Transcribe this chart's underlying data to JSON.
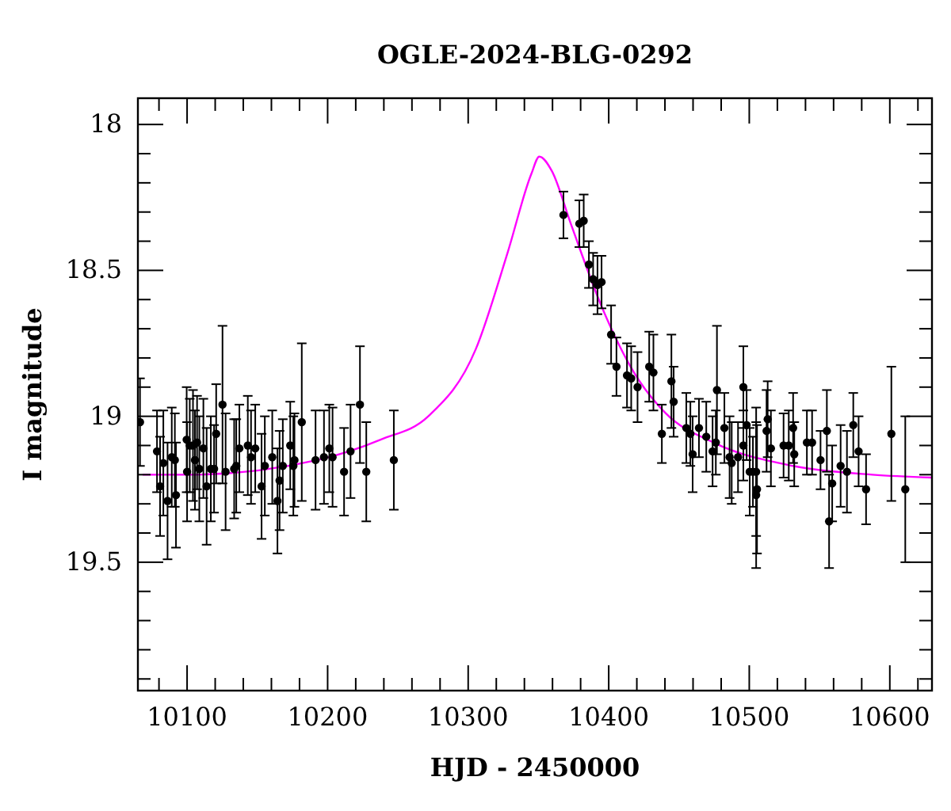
{
  "chart_data": {
    "type": "scatter",
    "title": "OGLE-2024-BLG-0292",
    "xlabel": "HJD - 2450000",
    "ylabel": "I magnitude",
    "xlim": [
      10065,
      10630
    ],
    "ylim": [
      19.94,
      17.91
    ],
    "xticks": [
      {
        "value": 10080,
        "label": null
      },
      10100,
      {
        "value": 10120,
        "label": null
      },
      {
        "value": 10140,
        "label": null
      },
      {
        "value": 10160,
        "label": null
      },
      {
        "value": 10180,
        "label": null
      },
      10200,
      {
        "value": 10220,
        "label": null
      },
      {
        "value": 10240,
        "label": null
      },
      {
        "value": 10260,
        "label": null
      },
      {
        "value": 10280,
        "label": null
      },
      10300,
      {
        "value": 10320,
        "label": null
      },
      {
        "value": 10340,
        "label": null
      },
      {
        "value": 10360,
        "label": null
      },
      {
        "value": 10380,
        "label": null
      },
      10400,
      {
        "value": 10420,
        "label": null
      },
      {
        "value": 10440,
        "label": null
      },
      {
        "value": 10460,
        "label": null
      },
      {
        "value": 10480,
        "label": null
      },
      10500,
      {
        "value": 10520,
        "label": null
      },
      {
        "value": 10540,
        "label": null
      },
      {
        "value": 10560,
        "label": null
      },
      {
        "value": 10580,
        "label": null
      },
      10600,
      {
        "value": 10620,
        "label": null
      }
    ],
    "yticks": [
      18,
      {
        "value": 18.1,
        "label": null
      },
      {
        "value": 18.2,
        "label": null
      },
      {
        "value": 18.3,
        "label": null
      },
      {
        "value": 18.4,
        "label": null
      },
      18.5,
      {
        "value": 18.6,
        "label": null
      },
      {
        "value": 18.7,
        "label": null
      },
      {
        "value": 18.8,
        "label": null
      },
      {
        "value": 18.9,
        "label": null
      },
      19,
      {
        "value": 19.1,
        "label": null
      },
      {
        "value": 19.2,
        "label": null
      },
      {
        "value": 19.3,
        "label": null
      },
      {
        "value": 19.4,
        "label": null
      },
      19.5,
      {
        "value": 19.6,
        "label": null
      },
      {
        "value": 19.7,
        "label": null
      },
      {
        "value": 19.8,
        "label": null
      },
      {
        "value": 19.9,
        "label": null
      }
    ],
    "grid": false,
    "series": [
      {
        "type": "line",
        "color": "#ff00ff",
        "marker": "none",
        "line_style": "solid",
        "x": [
          10068.4,
          10102,
          10192.6,
          10237.7,
          10271.6,
          10305.4,
          10328,
          10344.9,
          10350.6,
          10359.6,
          10373,
          10395.5,
          10418,
          10440.6,
          10474.7,
          10531,
          10587.6,
          10630
        ],
        "values": [
          19.2,
          19.2,
          19.15,
          19.08,
          19.0,
          18.77,
          18.44,
          18.17,
          18.11,
          18.16,
          18.34,
          18.63,
          18.85,
          18.99,
          19.09,
          19.17,
          19.2,
          19.21
        ]
      },
      {
        "color": "#000000",
        "marker": "circle",
        "x": [
          10066.5,
          10078.6,
          10080.8,
          10083.1,
          10086.1,
          10089.1,
          10091.3,
          10092.1,
          10099.7,
          10100.0,
          10101.9,
          10104.2,
          10105.6,
          10107.1,
          10108.7,
          10111.6,
          10113.9,
          10116.9,
          10119.2,
          10120.7,
          10125.2,
          10127.4,
          10133.5,
          10135,
          10137.2,
          10143.2,
          10145.5,
          10148.5,
          10153,
          10155.3,
          10160.6,
          10164.3,
          10165.8,
          10168.1,
          10173.4,
          10175.6,
          10176.4,
          10181.6,
          10191.4,
          10197.4,
          10201.2,
          10203.5,
          10211.7,
          10216.3,
          10223,
          10227.5,
          10247.1,
          10367.8,
          10379.1,
          10382.2,
          10385.9,
          10388.9,
          10392,
          10394.9,
          10401.7,
          10405.5,
          10413,
          10416,
          10420.5,
          10428.8,
          10431.8,
          10437.8,
          10444.6,
          10446.2,
          10455.2,
          10458.1,
          10459.7,
          10464.2,
          10469.4,
          10473.9,
          10476.2,
          10477,
          10482.3,
          10486,
          10487.5,
          10492,
          10495.8,
          10495.8,
          10498.1,
          10500.3,
          10502.6,
          10504.9,
          10504.9,
          10505.5,
          10512.3,
          10513.1,
          10515.4,
          10524.4,
          10528.1,
          10531.2,
          10532,
          10541,
          10544.7,
          10550.7,
          10555.2,
          10556.8,
          10559,
          10565,
          10569.5,
          10574,
          10577.8,
          10583.1,
          10601.1,
          10611
        ],
        "values": [
          19.02,
          19.12,
          19.24,
          19.16,
          19.29,
          19.14,
          19.15,
          19.27,
          19.08,
          19.19,
          19.1,
          19.1,
          19.15,
          19.09,
          19.18,
          19.11,
          19.24,
          19.18,
          19.18,
          19.06,
          18.96,
          19.19,
          19.18,
          19.17,
          19.11,
          19.1,
          19.14,
          19.11,
          19.24,
          19.17,
          19.14,
          19.29,
          19.22,
          19.17,
          19.1,
          19.17,
          19.15,
          19.02,
          19.15,
          19.14,
          19.11,
          19.14,
          19.19,
          19.12,
          18.96,
          19.19,
          19.15,
          18.31,
          18.34,
          18.33,
          18.48,
          18.53,
          18.55,
          18.54,
          18.72,
          18.83,
          18.86,
          18.87,
          18.9,
          18.83,
          18.85,
          19.06,
          18.88,
          18.95,
          19.04,
          19.06,
          19.13,
          19.04,
          19.07,
          19.12,
          19.09,
          18.91,
          19.04,
          19.14,
          19.16,
          19.14,
          18.9,
          19.1,
          19.03,
          19.19,
          19.19,
          19.19,
          19.27,
          19.25,
          19.05,
          19.01,
          19.11,
          19.1,
          19.1,
          19.04,
          19.13,
          19.09,
          19.09,
          19.15,
          19.05,
          19.36,
          19.23,
          19.17,
          19.19,
          19.03,
          19.12,
          19.25,
          19.06,
          19.25
        ],
        "errors": [
          0.15,
          0.14,
          0.17,
          0.18,
          0.2,
          0.17,
          0.16,
          0.18,
          0.18,
          0.17,
          0.16,
          0.19,
          0.17,
          0.16,
          0.18,
          0.17,
          0.2,
          0.18,
          0.15,
          0.17,
          0.27,
          0.2,
          0.17,
          0.16,
          0.15,
          0.17,
          0.16,
          0.15,
          0.18,
          0.17,
          0.16,
          0.18,
          0.17,
          0.16,
          0.15,
          0.17,
          0.16,
          0.27,
          0.17,
          0.16,
          0.15,
          0.17,
          0.15,
          0.16,
          0.2,
          0.17,
          0.17,
          0.08,
          0.08,
          0.09,
          0.08,
          0.09,
          0.1,
          0.09,
          0.1,
          0.1,
          0.11,
          0.11,
          0.12,
          0.12,
          0.13,
          0.1,
          0.16,
          0.12,
          0.12,
          0.11,
          0.13,
          0.1,
          0.12,
          0.12,
          0.11,
          0.22,
          0.12,
          0.14,
          0.14,
          0.12,
          0.14,
          0.12,
          0.12,
          0.15,
          0.12,
          0.22,
          0.25,
          0.22,
          0.14,
          0.13,
          0.13,
          0.11,
          0.12,
          0.12,
          0.11,
          0.11,
          0.11,
          0.1,
          0.14,
          0.16,
          0.13,
          0.14,
          0.14,
          0.11,
          0.12,
          0.12,
          0.23,
          0.25
        ]
      }
    ]
  }
}
